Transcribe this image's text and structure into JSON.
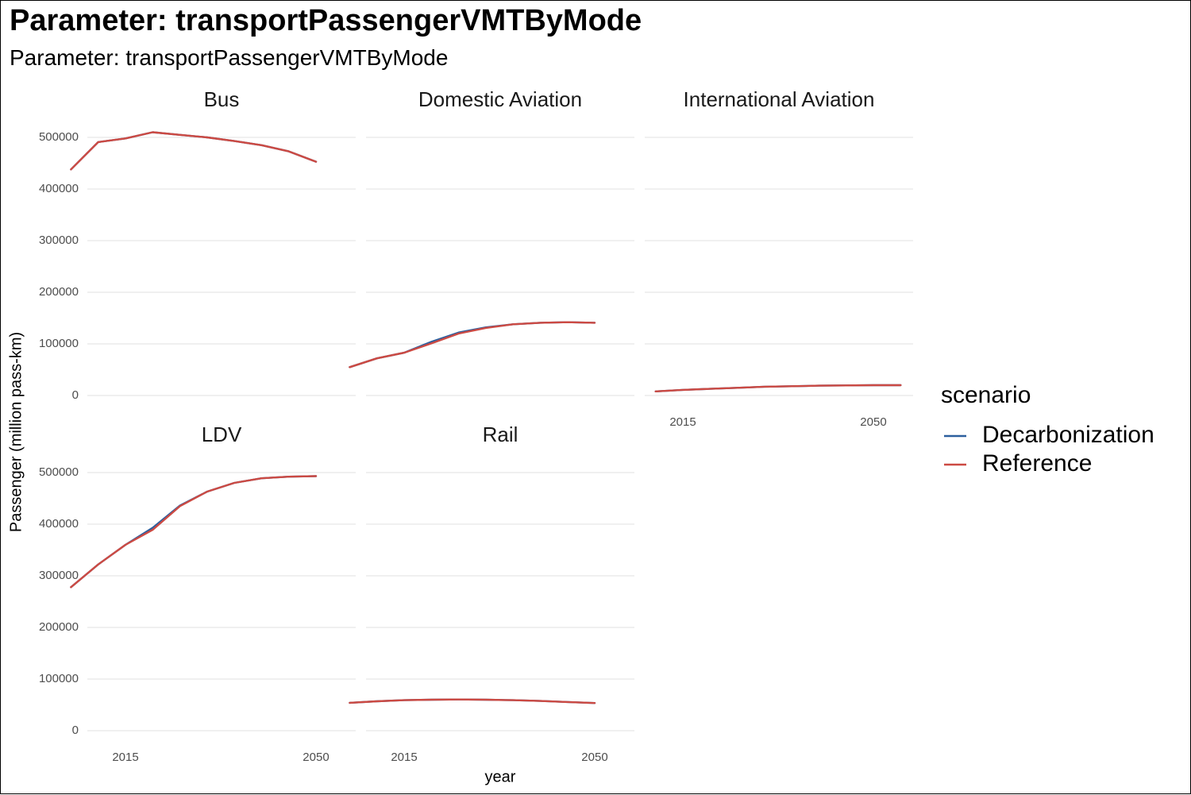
{
  "title": "Parameter: transportPassengerVMTByMode",
  "subtitle": "Parameter: transportPassengerVMTByMode",
  "chart_data": {
    "type": "line",
    "title": "Parameter: transportPassengerVMTByMode",
    "subtitle": "Parameter: transportPassengerVMTByMode",
    "xlabel": "year",
    "ylabel": "Passenger (million pass-km)",
    "xlim": [
      2005,
      2060
    ],
    "ylim": [
      0,
      510000
    ],
    "x_ticks": [
      2015,
      2050
    ],
    "y_ticks": [
      0,
      100000,
      200000,
      300000,
      400000,
      500000
    ],
    "grid": true,
    "legend": {
      "title": "scenario",
      "position": "right",
      "entries": [
        {
          "name": "Decarbonization",
          "color": "#2c5f9e"
        },
        {
          "name": "Reference",
          "color": "#cc4a43"
        }
      ]
    },
    "x": [
      2005,
      2010,
      2015,
      2020,
      2025,
      2030,
      2035,
      2040,
      2045,
      2050,
      2055
    ],
    "facets": [
      {
        "name": "Bus",
        "series": [
          {
            "name": "Decarbonization",
            "values": [
              438000,
              491000,
              498000,
              510000,
              505000,
              500000,
              493000,
              485000,
              473000,
              453000,
              null
            ]
          },
          {
            "name": "Reference",
            "values": [
              438000,
              491000,
              498000,
              510000,
              505000,
              500000,
              493000,
              485000,
              473000,
              453000,
              null
            ]
          }
        ]
      },
      {
        "name": "Domestic Aviation",
        "series": [
          {
            "name": "Decarbonization",
            "values": [
              55000,
              72000,
              83000,
              104000,
              122000,
              132000,
              138000,
              141000,
              142000,
              141000,
              null
            ]
          },
          {
            "name": "Reference",
            "values": [
              55000,
              72000,
              83000,
              101000,
              120000,
              131000,
              138000,
              141000,
              142000,
              141000,
              null
            ]
          }
        ]
      },
      {
        "name": "International Aviation",
        "series": [
          {
            "name": "Decarbonization",
            "values": [
              null,
              8000,
              11000,
              13000,
              15000,
              17000,
              18000,
              19000,
              19500,
              20000,
              20000
            ]
          },
          {
            "name": "Reference",
            "values": [
              null,
              8000,
              11000,
              13000,
              15000,
              17000,
              18000,
              19000,
              19500,
              20000,
              20000
            ]
          }
        ]
      },
      {
        "name": "LDV",
        "series": [
          {
            "name": "Decarbonization",
            "values": [
              278000,
              322000,
              360000,
              393000,
              436000,
              463000,
              480000,
              489000,
              492000,
              493000,
              null
            ]
          },
          {
            "name": "Reference",
            "values": [
              278000,
              322000,
              360000,
              389000,
              435000,
              463000,
              480000,
              489000,
              492000,
              493000,
              null
            ]
          }
        ]
      },
      {
        "name": "Rail",
        "series": [
          {
            "name": "Decarbonization",
            "values": [
              54000,
              57000,
              59000,
              60000,
              60500,
              60000,
              59000,
              57500,
              55500,
              53500,
              null
            ]
          },
          {
            "name": "Reference",
            "values": [
              54000,
              57000,
              59000,
              60000,
              60500,
              60000,
              59000,
              57500,
              55500,
              53500,
              null
            ]
          }
        ]
      }
    ]
  }
}
